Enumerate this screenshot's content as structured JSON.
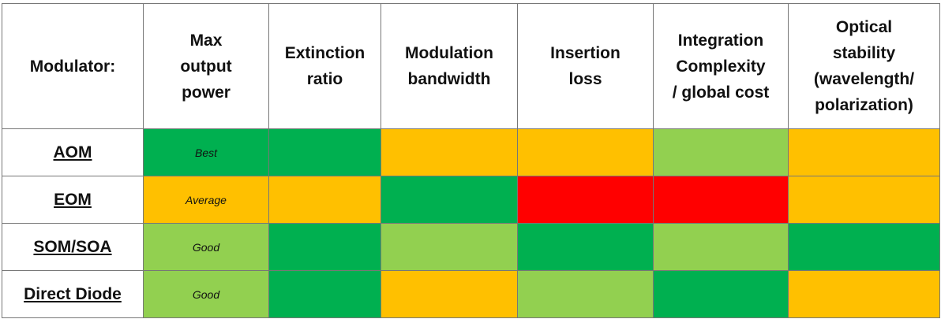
{
  "table": {
    "header": [
      [
        "Modulator:"
      ],
      [
        "Max",
        "output",
        "power"
      ],
      [
        "Extinction",
        "ratio"
      ],
      [
        "Modulation",
        "bandwidth"
      ],
      [
        "Insertion",
        "loss"
      ],
      [
        "Integration",
        "Complexity",
        "/ global cost"
      ],
      [
        "Optical",
        "stability",
        "(wavelength/",
        "polarization)"
      ]
    ],
    "rows": [
      {
        "label": "AOM",
        "cells": [
          {
            "color": "#00b050",
            "text": "Best"
          },
          {
            "color": "#00b050"
          },
          {
            "color": "#ffc000"
          },
          {
            "color": "#ffc000"
          },
          {
            "color": "#92d050"
          },
          {
            "color": "#ffc000"
          }
        ]
      },
      {
        "label": "EOM",
        "cells": [
          {
            "color": "#ffc000",
            "text": "Average"
          },
          {
            "color": "#ffc000"
          },
          {
            "color": "#00b050"
          },
          {
            "color": "#ff0000"
          },
          {
            "color": "#ff0000"
          },
          {
            "color": "#ffc000"
          }
        ]
      },
      {
        "label": "SOM/SOA",
        "cells": [
          {
            "color": "#92d050",
            "text": "Good"
          },
          {
            "color": "#00b050"
          },
          {
            "color": "#92d050"
          },
          {
            "color": "#00b050"
          },
          {
            "color": "#92d050"
          },
          {
            "color": "#00b050"
          }
        ]
      },
      {
        "label": "Direct Diode",
        "cells": [
          {
            "color": "#92d050",
            "text": "Good"
          },
          {
            "color": "#00b050"
          },
          {
            "color": "#ffc000"
          },
          {
            "color": "#92d050"
          },
          {
            "color": "#00b050"
          },
          {
            "color": "#ffc000"
          }
        ]
      }
    ]
  }
}
